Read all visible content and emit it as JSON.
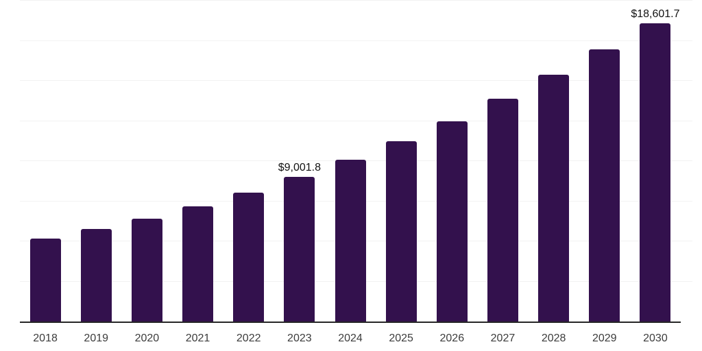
{
  "chart_data": {
    "type": "bar",
    "title": "",
    "xlabel": "",
    "ylabel": "",
    "categories": [
      "2018",
      "2019",
      "2020",
      "2021",
      "2022",
      "2023",
      "2024",
      "2025",
      "2026",
      "2027",
      "2028",
      "2029",
      "2030"
    ],
    "values": [
      5160,
      5760,
      6400,
      7170,
      8020,
      9001.8,
      10070,
      11220,
      12500,
      13910,
      15400,
      16980,
      18601.7
    ],
    "data_labels": [
      "",
      "",
      "",
      "",
      "",
      "$9,001.8",
      "",
      "",
      "",
      "",
      "",
      "",
      "$18,601.7"
    ],
    "ylim": [
      0,
      20000
    ],
    "gridline_step": 2500,
    "grid": "horizontal",
    "legend_position": "none",
    "colors": {
      "bar": "#33114d",
      "gridline": "#f2f2f2",
      "axis_line": "#262626",
      "tick_label": "#3c3c3c",
      "value_label": "#111111",
      "background": "#ffffff"
    }
  }
}
